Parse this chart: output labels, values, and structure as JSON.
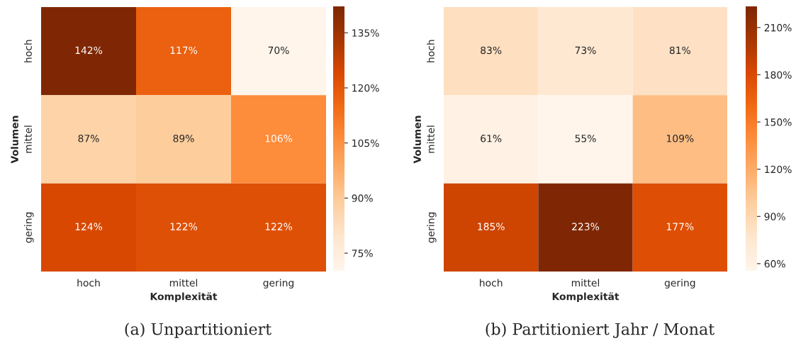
{
  "chart_data": [
    {
      "type": "heatmap",
      "xlabel": "Komplexität",
      "ylabel": "Volumen",
      "categories": [
        "hoch",
        "mittel",
        "gering"
      ],
      "y_categories": [
        "hoch",
        "mittel",
        "gering"
      ],
      "cells": [
        [
          142,
          117,
          70
        ],
        [
          87,
          89,
          106
        ],
        [
          124,
          122,
          122
        ]
      ],
      "cell_labels": [
        [
          "142%",
          "117%",
          "70%"
        ],
        [
          "87%",
          "89%",
          "106%"
        ],
        [
          "124%",
          "122%",
          "122%"
        ]
      ],
      "clim": [
        70,
        142
      ],
      "cticks": [
        {
          "value": 75,
          "label": "75%"
        },
        {
          "value": 90,
          "label": "90%"
        },
        {
          "value": 105,
          "label": "105%"
        },
        {
          "value": 120,
          "label": "120%"
        },
        {
          "value": 135,
          "label": "135%"
        }
      ],
      "annotations": [
        "(a) Unpartitioniert"
      ]
    },
    {
      "type": "heatmap",
      "xlabel": "Komplexität",
      "ylabel": "Volumen",
      "categories": [
        "hoch",
        "mittel",
        "gering"
      ],
      "y_categories": [
        "hoch",
        "mittel",
        "gering"
      ],
      "cells": [
        [
          83,
          73,
          81
        ],
        [
          61,
          55,
          109
        ],
        [
          185,
          223,
          177
        ]
      ],
      "cell_labels": [
        [
          "83%",
          "73%",
          "81%"
        ],
        [
          "61%",
          "55%",
          "109%"
        ],
        [
          "185%",
          "223%",
          "177%"
        ]
      ],
      "clim": [
        55,
        223
      ],
      "cticks": [
        {
          "value": 60,
          "label": "60%"
        },
        {
          "value": 90,
          "label": "90%"
        },
        {
          "value": 120,
          "label": "120%"
        },
        {
          "value": 150,
          "label": "150%"
        },
        {
          "value": 180,
          "label": "180%"
        },
        {
          "value": 210,
          "label": "210%"
        }
      ],
      "annotations": [
        "(b) Partitioniert Jahr / Monat"
      ]
    }
  ]
}
